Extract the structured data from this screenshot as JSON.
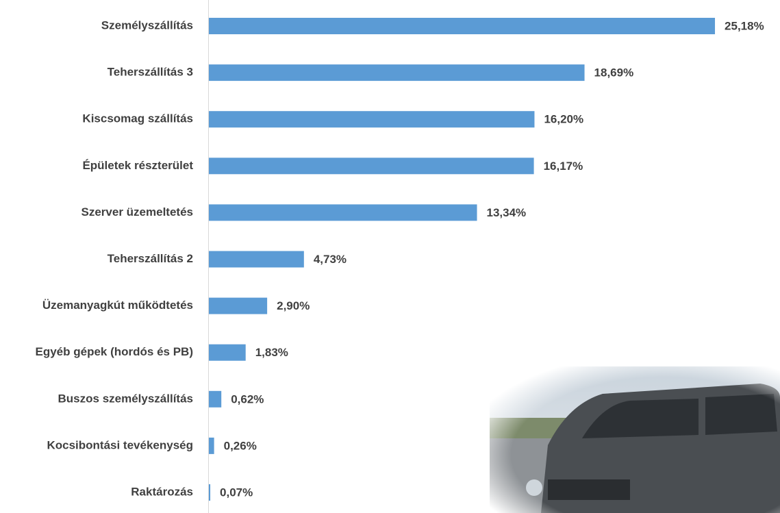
{
  "chart_data": {
    "type": "bar",
    "orientation": "horizontal",
    "color": "#5b9bd5",
    "categories": [
      "Személyszállítás",
      "Teherszállítás 3",
      "Kiscsomag szállítás",
      "Épületek részterület",
      "Szerver üzemeltetés",
      "Teherszállítás 2",
      "Üzemanyagkút működtetés",
      "Egyéb gépek (hordós és PB)",
      "Buszos személyszállítás",
      "Kocsibontási tevékenység",
      "Raktározás"
    ],
    "values": [
      25.18,
      18.69,
      16.2,
      16.17,
      13.34,
      4.73,
      2.9,
      1.83,
      0.62,
      0.26,
      0.07
    ],
    "value_labels": [
      "25,18%",
      "18,69%",
      "16,20%",
      "16,17%",
      "13,34%",
      "4,73%",
      "2,90%",
      "1,83%",
      "0,62%",
      "0,26%",
      "0,07%"
    ]
  }
}
